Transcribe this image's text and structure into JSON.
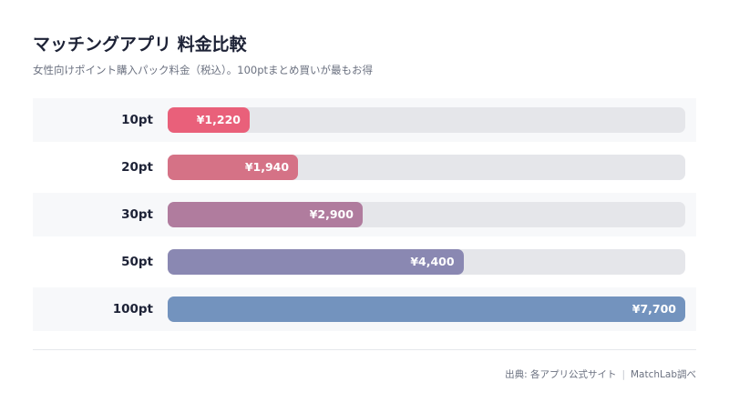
{
  "title": "マッチングアプリ 料金比較",
  "subtitle": "女性向けポイント購入パック料金（税込）。100ptまとめ買いが最もお得",
  "source": {
    "label": "出典: 各アプリ公式サイト",
    "separator": "|",
    "credit": "MatchLab調べ"
  },
  "chart_data": {
    "type": "bar",
    "orientation": "horizontal",
    "categories": [
      "10pt",
      "20pt",
      "30pt",
      "50pt",
      "100pt"
    ],
    "values": [
      1220,
      1940,
      2900,
      4400,
      7700
    ],
    "value_labels": [
      "¥1,220",
      "¥1,940",
      "¥2,900",
      "¥4,400",
      "¥7,700"
    ],
    "xlim": [
      0,
      7700
    ],
    "grid": false,
    "legend": "none",
    "colors": [
      "#e9607a",
      "#d57286",
      "#b07c9e",
      "#8a88b2",
      "#7393be"
    ],
    "track_color": "#e5e6ea"
  }
}
